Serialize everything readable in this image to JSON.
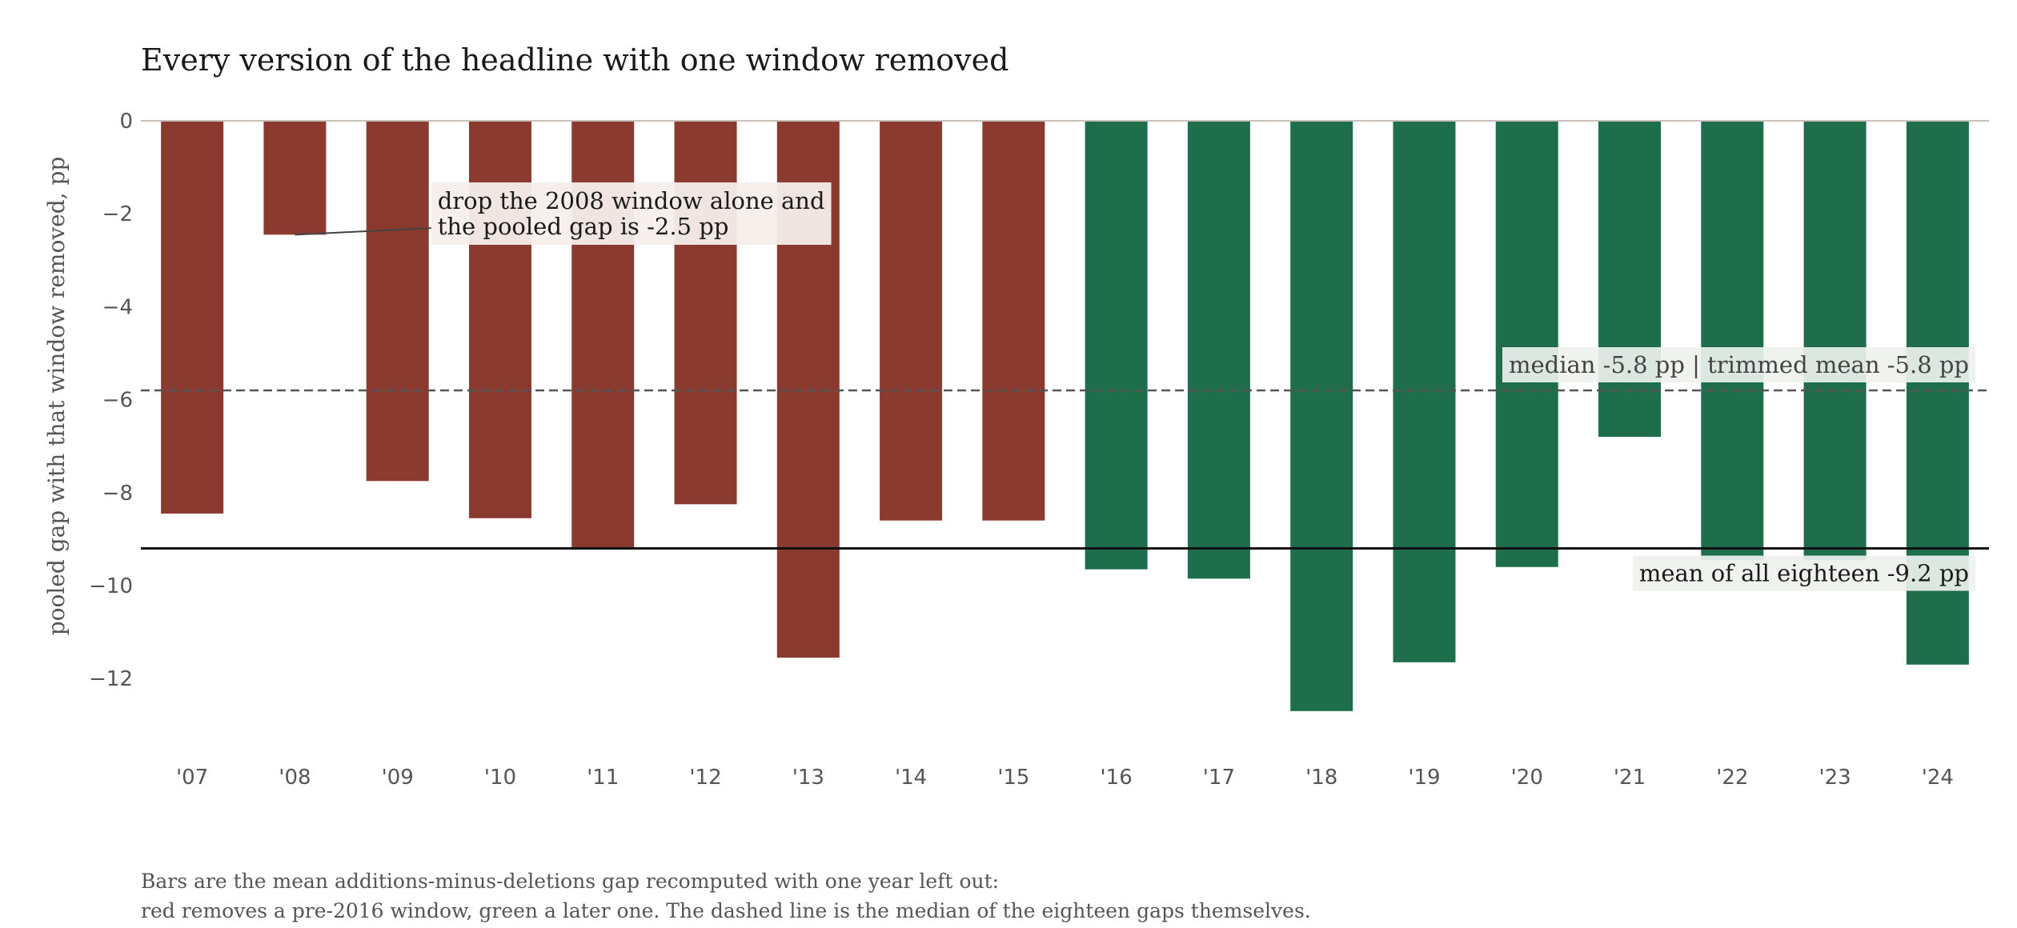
{
  "chart_data": {
    "type": "bar",
    "title": "Every version of the headline with one window removed",
    "ylabel": "pooled gap with that window removed, pp",
    "xlabel": "",
    "categories": [
      "'07",
      "'08",
      "'09",
      "'10",
      "'11",
      "'12",
      "'13",
      "'14",
      "'15",
      "'16",
      "'17",
      "'18",
      "'19",
      "'20",
      "'21",
      "'22",
      "'23",
      "'24"
    ],
    "values": [
      -8.45,
      -2.45,
      -7.75,
      -8.55,
      -9.2,
      -8.25,
      -11.55,
      -8.6,
      -8.6,
      -9.65,
      -9.85,
      -12.7,
      -11.65,
      -9.6,
      -6.8,
      -9.45,
      -9.45,
      -11.7
    ],
    "colors": [
      "#8b3a2f",
      "#8b3a2f",
      "#8b3a2f",
      "#8b3a2f",
      "#8b3a2f",
      "#8b3a2f",
      "#8b3a2f",
      "#8b3a2f",
      "#8b3a2f",
      "#1f6e4b",
      "#1f6e4b",
      "#1f6e4b",
      "#1f6e4b",
      "#1f6e4b",
      "#1f6e4b",
      "#1f6e4b",
      "#1f6e4b",
      "#1f6e4b"
    ],
    "ylim": [
      -13.5,
      0
    ],
    "yticks": [
      0,
      -2,
      -4,
      -6,
      -8,
      -10,
      -12
    ],
    "ytick_labels": [
      "0",
      "−2",
      "−4",
      "−6",
      "−8",
      "−10",
      "−12"
    ],
    "grid": false,
    "reference_lines": {
      "median": {
        "value": -5.8,
        "style": "dashed",
        "color": "#555555",
        "label": "median -5.8 pp | trimmed mean -5.8 pp"
      },
      "mean": {
        "value": -9.2,
        "style": "solid",
        "color": "#111111",
        "label": "mean of all eighteen  -9.2 pp"
      }
    },
    "annotation": {
      "target_category": "'08",
      "lines": [
        "drop the 2008 window alone and",
        "the pooled gap is -2.5 pp"
      ]
    },
    "footnote": [
      "Bars are the mean additions-minus-deletions gap recomputed with one year left out:",
      "red removes a pre-2016 window, green a later one. The dashed line is the median of the eighteen gaps themselves."
    ]
  }
}
